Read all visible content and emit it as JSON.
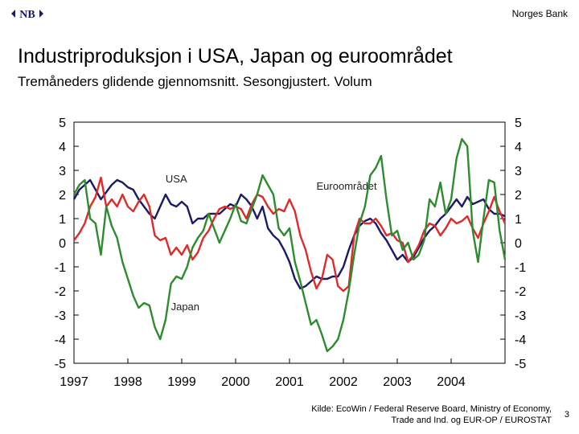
{
  "header": {
    "bank_name": "Norges Bank",
    "logo_text": "NB"
  },
  "title": "Industriproduksjon i USA, Japan og euroområdet",
  "subtitle": "Tremåneders glidende gjennomsnitt. Sesongjustert. Volum",
  "source": {
    "line1": "Kilde: EcoWin / Federal Reserve Board, Ministry of Economy,",
    "line2": "Trade and Ind. og EUR-OP / EUROSTAT"
  },
  "page_number": "3",
  "chart_data": {
    "type": "line",
    "title": "",
    "xlabel": "",
    "ylabel": "",
    "ylim": [
      -5,
      5
    ],
    "xlim": [
      1997,
      2005
    ],
    "y_ticks": [
      5,
      4,
      3,
      2,
      1,
      0,
      -1,
      -2,
      -3,
      -4,
      -5
    ],
    "x_ticks": [
      1997,
      1998,
      1999,
      2000,
      2001,
      2002,
      2003,
      2004
    ],
    "grid": false,
    "legend": "inline labels",
    "colors": {
      "USA": "#1a1a66",
      "Euroområdet": "#dd2a2a",
      "Japan": "#2e8b2e"
    },
    "series": [
      {
        "name": "USA",
        "label_at": [
          1998.7,
          2.5
        ],
        "points": [
          [
            1997.0,
            1.8
          ],
          [
            1997.1,
            2.2
          ],
          [
            1997.2,
            2.4
          ],
          [
            1997.3,
            2.6
          ],
          [
            1997.4,
            2.2
          ],
          [
            1997.5,
            1.8
          ],
          [
            1997.6,
            2.1
          ],
          [
            1997.7,
            2.4
          ],
          [
            1997.8,
            2.6
          ],
          [
            1997.9,
            2.5
          ],
          [
            1998.0,
            2.3
          ],
          [
            1998.1,
            2.2
          ],
          [
            1998.2,
            1.8
          ],
          [
            1998.3,
            1.5
          ],
          [
            1998.4,
            1.2
          ],
          [
            1998.5,
            1.0
          ],
          [
            1998.6,
            1.5
          ],
          [
            1998.7,
            2.0
          ],
          [
            1998.8,
            1.6
          ],
          [
            1998.9,
            1.5
          ],
          [
            1999.0,
            1.7
          ],
          [
            1999.1,
            1.5
          ],
          [
            1999.2,
            0.8
          ],
          [
            1999.3,
            1.0
          ],
          [
            1999.4,
            1.0
          ],
          [
            1999.5,
            1.2
          ],
          [
            1999.6,
            1.2
          ],
          [
            1999.7,
            1.2
          ],
          [
            1999.8,
            1.4
          ],
          [
            1999.9,
            1.6
          ],
          [
            2000.0,
            1.5
          ],
          [
            2000.1,
            2.0
          ],
          [
            2000.2,
            1.8
          ],
          [
            2000.3,
            1.5
          ],
          [
            2000.4,
            1.0
          ],
          [
            2000.5,
            1.5
          ],
          [
            2000.6,
            0.6
          ],
          [
            2000.7,
            0.3
          ],
          [
            2000.8,
            0.1
          ],
          [
            2000.9,
            -0.3
          ],
          [
            2001.0,
            -0.8
          ],
          [
            2001.1,
            -1.5
          ],
          [
            2001.2,
            -1.9
          ],
          [
            2001.3,
            -1.8
          ],
          [
            2001.4,
            -1.6
          ],
          [
            2001.5,
            -1.4
          ],
          [
            2001.6,
            -1.5
          ],
          [
            2001.7,
            -1.5
          ],
          [
            2001.8,
            -1.4
          ],
          [
            2001.9,
            -1.4
          ],
          [
            2002.0,
            -1.0
          ],
          [
            2002.1,
            -0.3
          ],
          [
            2002.2,
            0.3
          ],
          [
            2002.3,
            0.7
          ],
          [
            2002.4,
            0.9
          ],
          [
            2002.5,
            1.0
          ],
          [
            2002.6,
            0.8
          ],
          [
            2002.7,
            0.4
          ],
          [
            2002.8,
            0.1
          ],
          [
            2002.9,
            -0.3
          ],
          [
            2003.0,
            -0.7
          ],
          [
            2003.1,
            -0.5
          ],
          [
            2003.2,
            -0.8
          ],
          [
            2003.3,
            -0.6
          ],
          [
            2003.4,
            -0.2
          ],
          [
            2003.5,
            0.2
          ],
          [
            2003.6,
            0.5
          ],
          [
            2003.7,
            0.7
          ],
          [
            2003.8,
            1.0
          ],
          [
            2003.9,
            1.2
          ],
          [
            2004.0,
            1.5
          ],
          [
            2004.1,
            1.8
          ],
          [
            2004.2,
            1.5
          ],
          [
            2004.3,
            1.9
          ],
          [
            2004.4,
            1.6
          ],
          [
            2004.5,
            1.7
          ],
          [
            2004.6,
            1.8
          ],
          [
            2004.7,
            1.4
          ],
          [
            2004.8,
            1.2
          ],
          [
            2004.9,
            1.2
          ],
          [
            2005.0,
            1.1
          ]
        ]
      },
      {
        "name": "Euroområdet",
        "label_at": [
          2001.5,
          2.2
        ],
        "points": [
          [
            1997.0,
            0.1
          ],
          [
            1997.1,
            0.4
          ],
          [
            1997.2,
            0.8
          ],
          [
            1997.3,
            1.5
          ],
          [
            1997.4,
            1.9
          ],
          [
            1997.5,
            2.7
          ],
          [
            1997.6,
            1.5
          ],
          [
            1997.7,
            1.8
          ],
          [
            1997.8,
            1.5
          ],
          [
            1997.9,
            2.0
          ],
          [
            1998.0,
            1.5
          ],
          [
            1998.1,
            1.3
          ],
          [
            1998.2,
            1.7
          ],
          [
            1998.3,
            2.0
          ],
          [
            1998.4,
            1.5
          ],
          [
            1998.5,
            0.3
          ],
          [
            1998.6,
            0.1
          ],
          [
            1998.7,
            0.2
          ],
          [
            1998.8,
            -0.5
          ],
          [
            1998.9,
            -0.2
          ],
          [
            1999.0,
            -0.5
          ],
          [
            1999.1,
            -0.1
          ],
          [
            1999.2,
            -0.7
          ],
          [
            1999.3,
            -0.4
          ],
          [
            1999.4,
            0.2
          ],
          [
            1999.5,
            0.5
          ],
          [
            1999.6,
            1.0
          ],
          [
            1999.7,
            1.4
          ],
          [
            1999.8,
            1.5
          ],
          [
            1999.9,
            1.4
          ],
          [
            2000.0,
            1.5
          ],
          [
            2000.1,
            1.4
          ],
          [
            2000.2,
            1.0
          ],
          [
            2000.3,
            1.6
          ],
          [
            2000.4,
            2.0
          ],
          [
            2000.5,
            1.9
          ],
          [
            2000.6,
            1.5
          ],
          [
            2000.7,
            1.2
          ],
          [
            2000.8,
            1.4
          ],
          [
            2000.9,
            1.3
          ],
          [
            2001.0,
            1.8
          ],
          [
            2001.1,
            1.3
          ],
          [
            2001.2,
            0.3
          ],
          [
            2001.3,
            -0.3
          ],
          [
            2001.4,
            -1.2
          ],
          [
            2001.5,
            -1.9
          ],
          [
            2001.6,
            -1.5
          ],
          [
            2001.7,
            -0.5
          ],
          [
            2001.8,
            -0.7
          ],
          [
            2001.9,
            -1.8
          ],
          [
            2002.0,
            -2.0
          ],
          [
            2002.1,
            -1.8
          ],
          [
            2002.2,
            0.3
          ],
          [
            2002.3,
            1.0
          ],
          [
            2002.4,
            0.8
          ],
          [
            2002.5,
            0.8
          ],
          [
            2002.6,
            1.0
          ],
          [
            2002.7,
            0.7
          ],
          [
            2002.8,
            0.3
          ],
          [
            2002.9,
            0.4
          ],
          [
            2003.0,
            0.1
          ],
          [
            2003.1,
            0.0
          ],
          [
            2003.2,
            -0.8
          ],
          [
            2003.3,
            -0.5
          ],
          [
            2003.4,
            -0.1
          ],
          [
            2003.5,
            0.5
          ],
          [
            2003.6,
            0.8
          ],
          [
            2003.7,
            0.7
          ],
          [
            2003.8,
            0.3
          ],
          [
            2003.9,
            0.6
          ],
          [
            2004.0,
            1.0
          ],
          [
            2004.1,
            0.8
          ],
          [
            2004.2,
            0.9
          ],
          [
            2004.3,
            1.1
          ],
          [
            2004.4,
            0.6
          ],
          [
            2004.5,
            0.2
          ],
          [
            2004.6,
            0.8
          ],
          [
            2004.7,
            1.3
          ],
          [
            2004.8,
            1.9
          ],
          [
            2004.9,
            1.3
          ],
          [
            2005.0,
            0.8
          ]
        ]
      },
      {
        "name": "Japan",
        "label_at": [
          1998.8,
          -2.8
        ],
        "points": [
          [
            1997.0,
            2.0
          ],
          [
            1997.1,
            2.4
          ],
          [
            1997.2,
            2.6
          ],
          [
            1997.3,
            1.0
          ],
          [
            1997.4,
            0.8
          ],
          [
            1997.5,
            -0.5
          ],
          [
            1997.6,
            1.5
          ],
          [
            1997.7,
            0.7
          ],
          [
            1997.8,
            0.2
          ],
          [
            1997.9,
            -0.8
          ],
          [
            1998.0,
            -1.5
          ],
          [
            1998.1,
            -2.2
          ],
          [
            1998.2,
            -2.7
          ],
          [
            1998.3,
            -2.5
          ],
          [
            1998.4,
            -2.6
          ],
          [
            1998.5,
            -3.5
          ],
          [
            1998.6,
            -4.0
          ],
          [
            1998.7,
            -3.2
          ],
          [
            1998.8,
            -1.7
          ],
          [
            1998.9,
            -1.4
          ],
          [
            1999.0,
            -1.5
          ],
          [
            1999.1,
            -1.0
          ],
          [
            1999.2,
            -0.2
          ],
          [
            1999.3,
            0.2
          ],
          [
            1999.4,
            0.5
          ],
          [
            1999.5,
            1.2
          ],
          [
            1999.6,
            0.6
          ],
          [
            1999.7,
            0.0
          ],
          [
            1999.8,
            0.5
          ],
          [
            1999.9,
            1.0
          ],
          [
            2000.0,
            1.6
          ],
          [
            2000.1,
            0.9
          ],
          [
            2000.2,
            0.8
          ],
          [
            2000.3,
            1.4
          ],
          [
            2000.4,
            2.0
          ],
          [
            2000.5,
            2.8
          ],
          [
            2000.6,
            2.4
          ],
          [
            2000.7,
            2.0
          ],
          [
            2000.8,
            0.6
          ],
          [
            2000.9,
            0.3
          ],
          [
            2001.0,
            0.6
          ],
          [
            2001.1,
            -0.8
          ],
          [
            2001.2,
            -1.6
          ],
          [
            2001.3,
            -2.5
          ],
          [
            2001.4,
            -3.4
          ],
          [
            2001.5,
            -3.2
          ],
          [
            2001.6,
            -3.8
          ],
          [
            2001.7,
            -4.5
          ],
          [
            2001.8,
            -4.3
          ],
          [
            2001.9,
            -4.0
          ],
          [
            2002.0,
            -3.2
          ],
          [
            2002.1,
            -2.0
          ],
          [
            2002.2,
            -0.5
          ],
          [
            2002.3,
            0.8
          ],
          [
            2002.4,
            1.5
          ],
          [
            2002.5,
            2.8
          ],
          [
            2002.6,
            3.1
          ],
          [
            2002.7,
            3.6
          ],
          [
            2002.8,
            1.8
          ],
          [
            2002.9,
            0.3
          ],
          [
            2003.0,
            0.5
          ],
          [
            2003.1,
            -0.3
          ],
          [
            2003.2,
            0.0
          ],
          [
            2003.3,
            -0.7
          ],
          [
            2003.4,
            -0.5
          ],
          [
            2003.5,
            0.1
          ],
          [
            2003.6,
            1.8
          ],
          [
            2003.7,
            1.5
          ],
          [
            2003.8,
            2.5
          ],
          [
            2003.9,
            1.2
          ],
          [
            2004.0,
            1.8
          ],
          [
            2004.1,
            3.5
          ],
          [
            2004.2,
            4.3
          ],
          [
            2004.3,
            4.0
          ],
          [
            2004.4,
            0.5
          ],
          [
            2004.5,
            -0.8
          ],
          [
            2004.6,
            1.0
          ],
          [
            2004.7,
            2.6
          ],
          [
            2004.8,
            2.5
          ],
          [
            2004.9,
            0.5
          ],
          [
            2005.0,
            -0.7
          ]
        ]
      }
    ]
  }
}
